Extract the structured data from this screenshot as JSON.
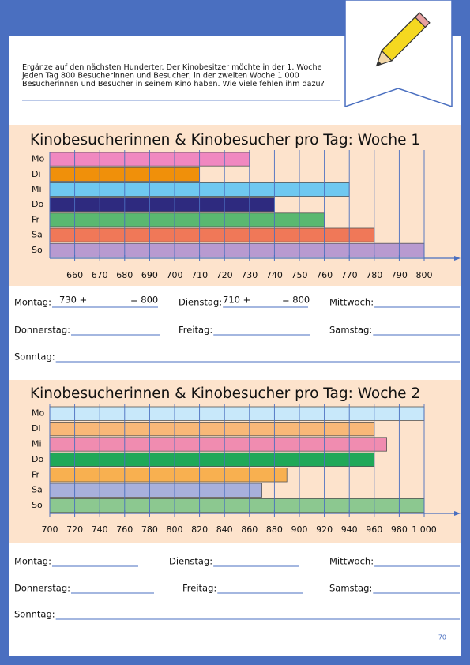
{
  "instruction_lines": [
    "Ergänze auf den nächsten Hunderter. Der Kinobesitzer möchte in der 1. Woche",
    "jeden Tag 800 Besucherinnen und Besucher, in der zweiten Woche 1 000",
    "Besucherinnen und Besucher in seinem Kino haben. Wie viele fehlen ihm dazu?"
  ],
  "chart_data": [
    {
      "type": "bar",
      "orientation": "horizontal",
      "title": "Kinobesucherinnen & Kinobesucher pro Tag: Woche 1",
      "categories": [
        "Mo",
        "Di",
        "Mi",
        "Do",
        "Fr",
        "Sa",
        "So"
      ],
      "values": [
        730,
        710,
        770,
        740,
        760,
        780,
        800
      ],
      "colors": [
        "#f088c0",
        "#f0900a",
        "#6fc8f0",
        "#2e2a7f",
        "#5ab870",
        "#f07858",
        "#b89ad0"
      ],
      "xlim": [
        650,
        800
      ],
      "xticks": [
        660,
        670,
        680,
        690,
        700,
        710,
        720,
        730,
        740,
        750,
        760,
        770,
        780,
        790,
        800
      ],
      "grid": true
    },
    {
      "type": "bar",
      "orientation": "horizontal",
      "title": "Kinobesucherinnen & Kinobesucher pro Tag: Woche 2",
      "categories": [
        "Mo",
        "Di",
        "Mi",
        "Do",
        "Fr",
        "Sa",
        "So"
      ],
      "values": [
        1000,
        960,
        970,
        960,
        890,
        870,
        1000
      ],
      "colors": [
        "#c8e8fa",
        "#f8b878",
        "#f08cb0",
        "#20a858",
        "#f8b050",
        "#a8b0dc",
        "#8cc890"
      ],
      "xlim": [
        700,
        1000
      ],
      "xticks": [
        700,
        720,
        740,
        760,
        780,
        800,
        820,
        840,
        860,
        880,
        900,
        920,
        940,
        960,
        980,
        {
          "value": 1000,
          "label": "1 000"
        }
      ],
      "grid": true
    }
  ],
  "answers": [
    {
      "labels": [
        "Montag:",
        "Dienstag:",
        "Mittwoch:",
        "Donnerstag:",
        "Freitag:",
        "Samstag:",
        "Sonntag:"
      ],
      "filled": [
        [
          "730 +",
          "= 800"
        ],
        [
          "710 +",
          "= 800"
        ]
      ]
    },
    {
      "labels": [
        "Montag:",
        "Dienstag:",
        "Mittwoch:",
        "Donnerstag:",
        "Freitag:",
        "Samstag:",
        "Sonntag:"
      ],
      "filled": []
    }
  ],
  "page_number": "70"
}
